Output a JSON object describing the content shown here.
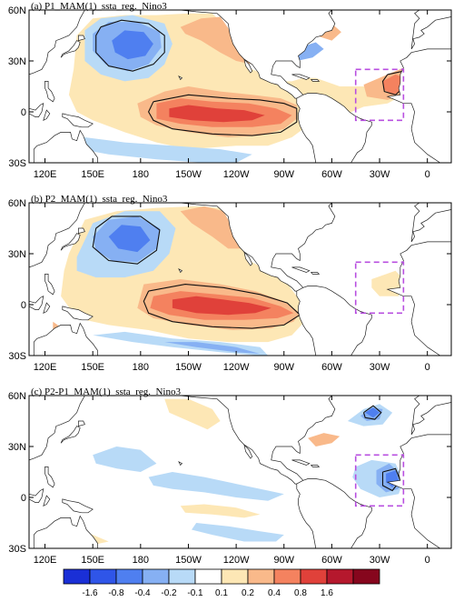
{
  "panels": [
    {
      "title": "(a) P1_MAM(1)_ssta_reg._Nino3",
      "box_color": "#b84fe0"
    },
    {
      "title": "(b) P2_MAM(1)_ssta_reg._Nino3",
      "box_color": "#b84fe0"
    },
    {
      "title": "(c) P2-P1_MAM(1)_ssta_reg._Nino3",
      "box_color": "#b84fe0"
    }
  ],
  "lat_labels": [
    "60N",
    "30N",
    "0",
    "30S"
  ],
  "lon_labels": [
    "120E",
    "150E",
    "180",
    "150W",
    "120W",
    "90W",
    "60W",
    "30W",
    "0"
  ],
  "colorbar": {
    "labels": [
      "-1.6",
      "-0.8",
      "-0.4",
      "-0.2",
      "-0.1",
      "0.1",
      "0.2",
      "0.4",
      "0.8",
      "1.6"
    ],
    "colors": [
      "#1a2fd6",
      "#2f55e8",
      "#4f7ff0",
      "#86b0f3",
      "#b8daf7",
      "#ffffff",
      "#fde7b5",
      "#f9b98a",
      "#f4825f",
      "#e0413a",
      "#b5182d",
      "#86061d"
    ]
  },
  "colors": {
    "land": "#ffffff",
    "coast": "#222222",
    "warm_light": "#fde7b5",
    "warm_mid": "#f9b98a",
    "warm_strong": "#f4825f",
    "warm_red": "#e0413a",
    "cool_light": "#b8daf7",
    "cool_mid": "#86b0f3",
    "cool_strong": "#4f7ff0",
    "cool_deep": "#2f55e8"
  }
}
